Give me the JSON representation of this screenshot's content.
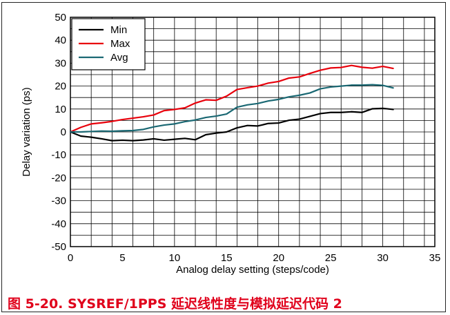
{
  "caption": "图 5-20. SYSREF/1PPS 延迟线性度与模拟延迟代码 2",
  "colors": {
    "min": "#000000",
    "max": "#e8000b",
    "avg": "#1a6873",
    "grid": "#000000"
  },
  "chart_data": {
    "type": "line",
    "title": "",
    "xlabel": "Analog delay setting (steps/code)",
    "ylabel": "Delay variation (ps)",
    "xlim": [
      0,
      35
    ],
    "ylim": [
      -50,
      50
    ],
    "xticks": [
      0,
      5,
      10,
      15,
      20,
      25,
      30,
      35
    ],
    "yticks": [
      -50,
      -40,
      -30,
      -20,
      -10,
      0,
      10,
      20,
      30,
      40,
      50
    ],
    "grid": true,
    "legend_position": "top-left",
    "x": [
      0,
      1,
      2,
      3,
      4,
      5,
      6,
      7,
      8,
      9,
      10,
      11,
      12,
      13,
      14,
      15,
      16,
      17,
      18,
      19,
      20,
      21,
      22,
      23,
      24,
      25,
      26,
      27,
      28,
      29,
      30,
      31
    ],
    "series": [
      {
        "name": "Min",
        "color": "#000000",
        "values": [
          0,
          -1.8,
          -2.3,
          -3,
          -3.8,
          -3.6,
          -3.8,
          -3.5,
          -3,
          -3.6,
          -3.2,
          -2.8,
          -3.4,
          -1.2,
          -0.5,
          0,
          1.8,
          2.8,
          2.6,
          3.7,
          3.9,
          5.1,
          5.6,
          6.8,
          8,
          8.5,
          8.5,
          8.8,
          8.5,
          10.1,
          10.3,
          9.8
        ]
      },
      {
        "name": "Max",
        "color": "#e8000b",
        "values": [
          0,
          2,
          3.5,
          4,
          4.6,
          5.4,
          6,
          6.6,
          7.4,
          9.3,
          9.8,
          10.5,
          12.6,
          14,
          13.8,
          15.6,
          18.5,
          19.3,
          20,
          21.3,
          22,
          23.5,
          24,
          25.5,
          26.9,
          27.9,
          28.1,
          29,
          28.2,
          27.8,
          28.6,
          27.7
        ]
      },
      {
        "name": "Avg",
        "color": "#1a6873",
        "values": [
          0,
          0,
          0.2,
          0.4,
          0.3,
          0.5,
          0.6,
          1.1,
          2.2,
          3,
          3.5,
          4.5,
          5.2,
          6.3,
          6.9,
          7.8,
          10.8,
          11.8,
          12.4,
          13.5,
          14.2,
          15.3,
          16,
          17,
          18.8,
          19.6,
          20,
          20.4,
          20.4,
          20.6,
          20.3,
          19.2
        ]
      }
    ]
  }
}
